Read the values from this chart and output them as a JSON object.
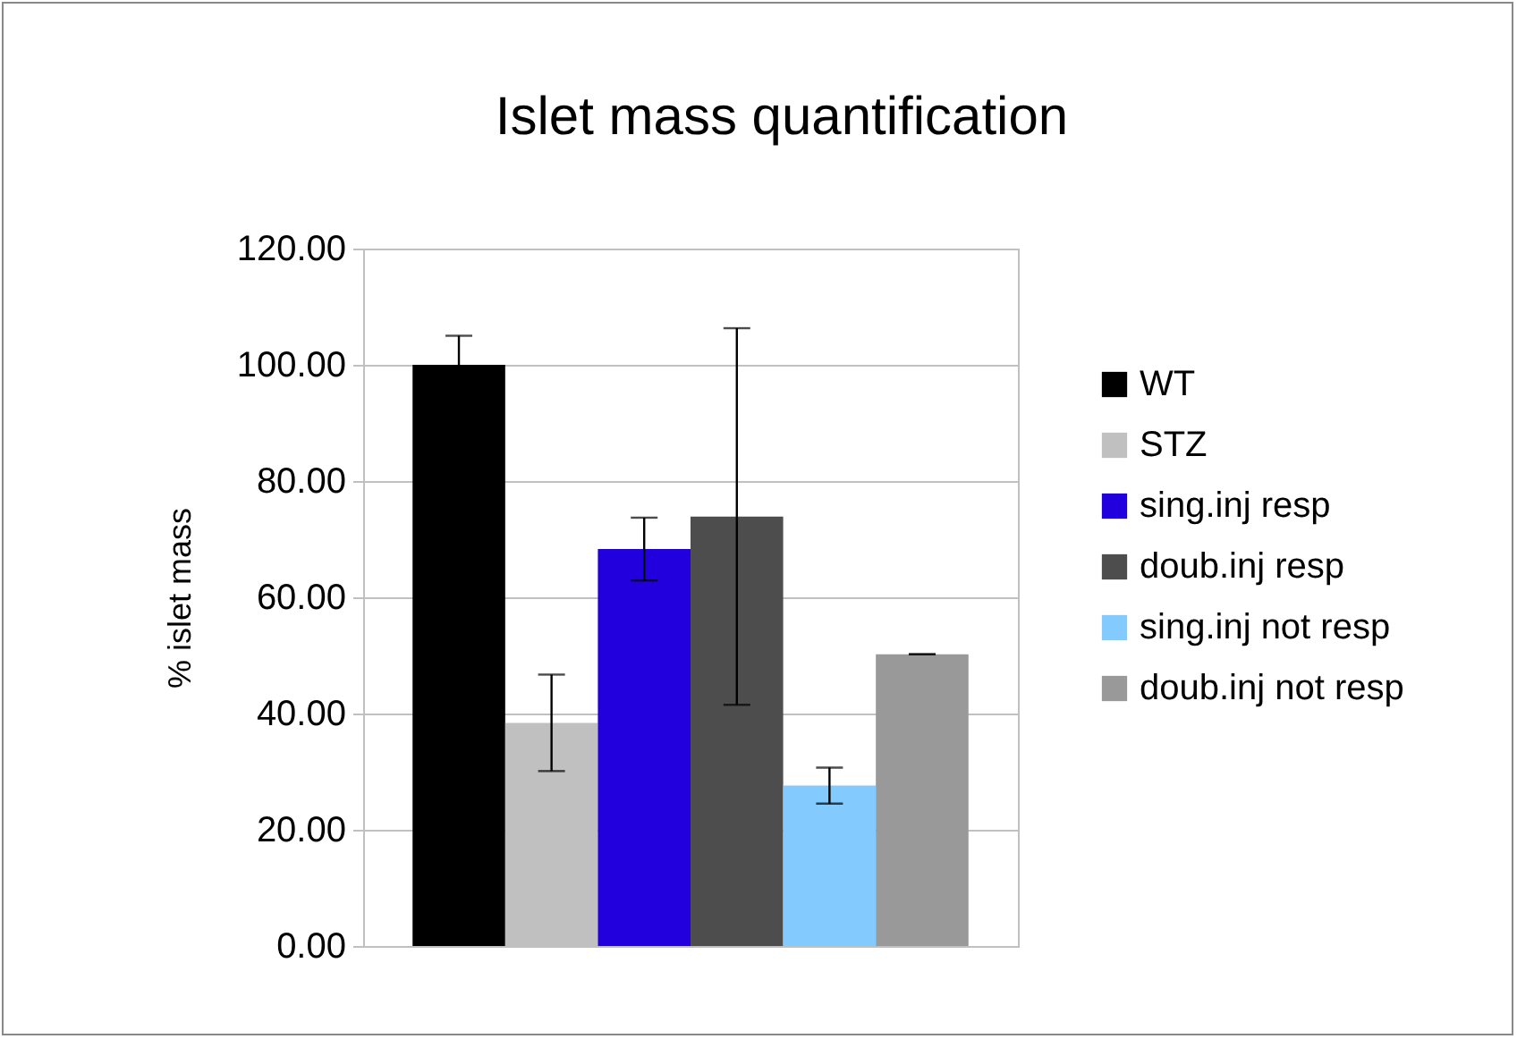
{
  "chart_data": {
    "type": "bar",
    "title": "Islet mass quantification",
    "ylabel": "% islet mass",
    "categories": [
      null
    ],
    "series": [
      {
        "name": "WT",
        "color": "#000000",
        "values": [
          100
        ],
        "errors": [
          5
        ]
      },
      {
        "name": "STZ",
        "color": "#c0c0c0",
        "values": [
          38.4
        ],
        "errors": [
          8.3
        ]
      },
      {
        "name": "sing.inj resp",
        "color": "#2200dd",
        "values": [
          68.3
        ],
        "errors": [
          5.4
        ]
      },
      {
        "name": "doub.inj resp",
        "color": "#4d4d4d",
        "values": [
          73.9
        ],
        "errors": [
          32.4
        ]
      },
      {
        "name": "sing.inj not resp",
        "color": "#83caff",
        "values": [
          27.6
        ],
        "errors": [
          3.1
        ]
      },
      {
        "name": "doub.inj not resp",
        "color": "#999999",
        "values": [
          50.2
        ],
        "errors": [
          0
        ]
      }
    ],
    "ylim": [
      0,
      120
    ],
    "yticks": [
      {
        "value": 0,
        "label": "0.00"
      },
      {
        "value": 20,
        "label": "20.00"
      },
      {
        "value": 40,
        "label": "40.00"
      },
      {
        "value": 60,
        "label": "60.00"
      },
      {
        "value": 80,
        "label": "80.00"
      },
      {
        "value": 100,
        "label": "100.00"
      },
      {
        "value": 120,
        "label": "120.00"
      }
    ],
    "grid": "y",
    "legend": "right",
    "tick_labels": "y"
  }
}
